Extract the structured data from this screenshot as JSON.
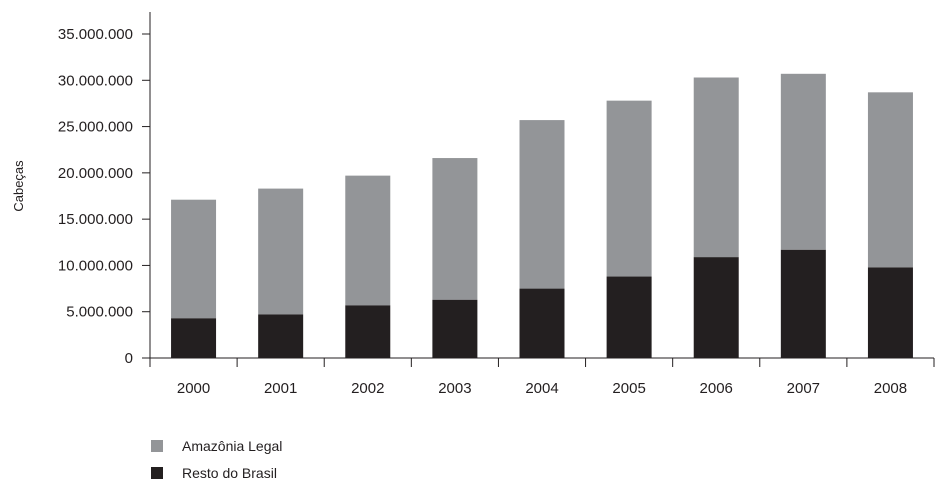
{
  "chart_data": {
    "type": "bar",
    "stacked": true,
    "title": "",
    "xlabel": "",
    "ylabel": "Cabeças",
    "ylim": [
      0,
      35000000
    ],
    "grid": false,
    "legend_position": "bottom-left",
    "categories": [
      "2000",
      "2001",
      "2002",
      "2003",
      "2004",
      "2005",
      "2006",
      "2007",
      "2008"
    ],
    "y_ticks": [
      0,
      5000000,
      10000000,
      15000000,
      20000000,
      25000000,
      30000000,
      35000000
    ],
    "y_tick_labels": [
      "0",
      "5.000.000",
      "10.000.000",
      "15.000.000",
      "20.000.000",
      "25.000.000",
      "30.000.000",
      "35.000.000"
    ],
    "series": [
      {
        "name": "Resto do Brasil",
        "color": "#231f20",
        "values": [
          4300000,
          4700000,
          5700000,
          6300000,
          7500000,
          8800000,
          10900000,
          11700000,
          9800000
        ]
      },
      {
        "name": "Amazônia Legal",
        "color": "#939598",
        "values": [
          12800000,
          13600000,
          14000000,
          15300000,
          18200000,
          19000000,
          19400000,
          19000000,
          18900000
        ]
      }
    ],
    "legend_order": [
      "Amazônia Legal",
      "Resto do Brasil"
    ]
  }
}
